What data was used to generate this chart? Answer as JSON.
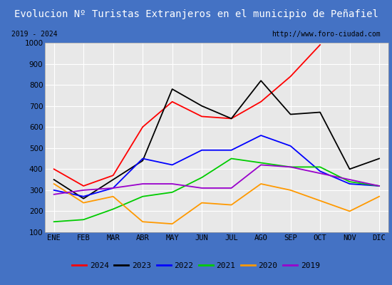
{
  "title": "Evolucion Nº Turistas Extranjeros en el municipio de Peñafiel",
  "subtitle_left": "2019 - 2024",
  "subtitle_right": "http://www.foro-ciudad.com",
  "months": [
    "ENE",
    "FEB",
    "MAR",
    "ABR",
    "MAY",
    "JUN",
    "JUL",
    "AGO",
    "SEP",
    "OCT",
    "NOV",
    "DIC"
  ],
  "ylim": [
    100,
    1000
  ],
  "yticks": [
    100,
    200,
    300,
    400,
    500,
    600,
    700,
    800,
    900,
    1000
  ],
  "series": {
    "2024": {
      "color": "#ff0000",
      "values": [
        400,
        320,
        370,
        600,
        720,
        650,
        640,
        720,
        840,
        990,
        null,
        null
      ]
    },
    "2023": {
      "color": "#000000",
      "values": [
        350,
        260,
        350,
        440,
        780,
        700,
        640,
        820,
        660,
        670,
        400,
        450
      ]
    },
    "2022": {
      "color": "#0000ff",
      "values": [
        300,
        270,
        310,
        450,
        420,
        490,
        490,
        560,
        510,
        390,
        330,
        320
      ]
    },
    "2021": {
      "color": "#00cc00",
      "values": [
        150,
        160,
        210,
        270,
        290,
        360,
        450,
        430,
        410,
        410,
        340,
        320
      ]
    },
    "2020": {
      "color": "#ff9900",
      "values": [
        330,
        240,
        270,
        150,
        140,
        240,
        230,
        330,
        300,
        250,
        200,
        270
      ]
    },
    "2019": {
      "color": "#9900cc",
      "values": [
        280,
        300,
        310,
        330,
        330,
        310,
        310,
        420,
        410,
        380,
        350,
        320
      ]
    }
  },
  "title_bg_color": "#4472c4",
  "title_font_color": "#ffffff",
  "plot_bg_color": "#e8e8e8",
  "grid_color": "#ffffff",
  "title_fontsize": 10,
  "axis_fontsize": 7.5,
  "legend_order": [
    "2024",
    "2023",
    "2022",
    "2021",
    "2020",
    "2019"
  ],
  "outer_bg_color": "#4472c4"
}
